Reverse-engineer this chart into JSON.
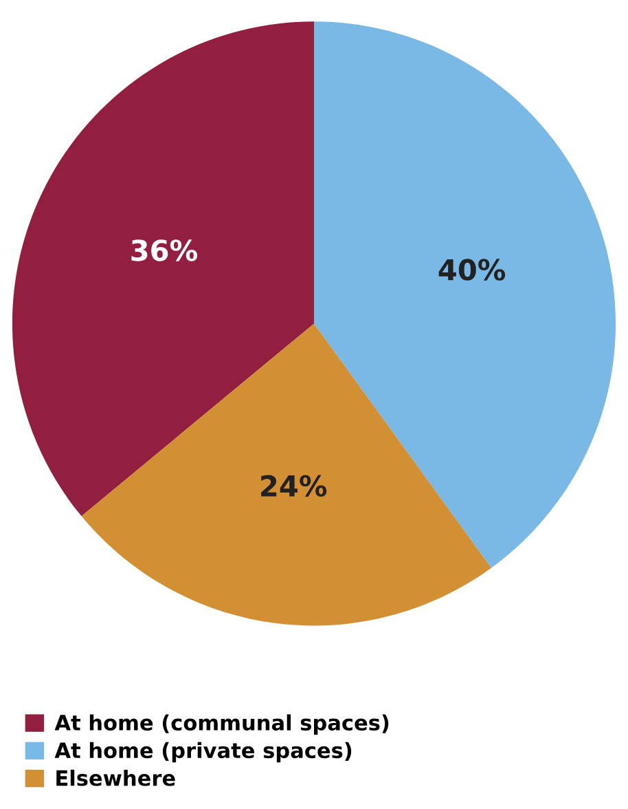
{
  "chart_data": {
    "type": "pie",
    "categories": [
      "At home (communal spaces)",
      "At home (private spaces)",
      "Elsewhere"
    ],
    "values": [
      36,
      40,
      24
    ],
    "colors": [
      "#921f40",
      "#7ab8e5",
      "#d38f33"
    ],
    "value_labels": [
      "36%",
      "40%",
      "24%"
    ],
    "legend": "bottom left"
  }
}
